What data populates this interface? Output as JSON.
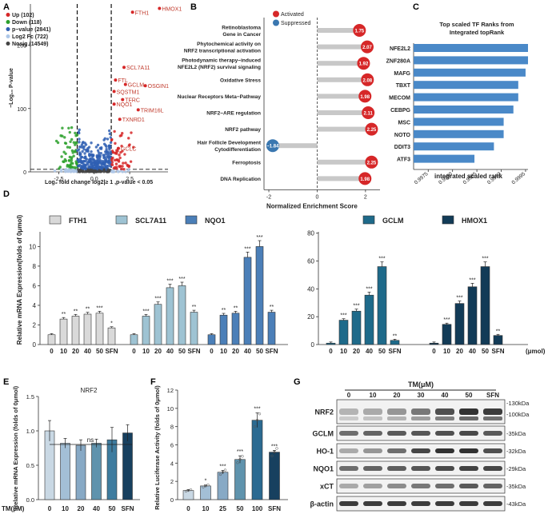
{
  "figure": {
    "panel_labels": [
      "A",
      "B",
      "C",
      "D",
      "E",
      "F",
      "G"
    ],
    "colors": {
      "up": "#d62728",
      "down": "#2ca02c",
      "pvalue": "#2f5fb3",
      "fc": "#aec7e8",
      "nosig": "#444444",
      "activated": "#d62728",
      "suppressed": "#3a77b0",
      "barfill": "#4a89c8",
      "d1": "#d9d9d9",
      "d2": "#9ec3d3",
      "d3": "#4b7fb8",
      "d4": "#1e6a8a",
      "d5": "#123b57",
      "e0": "#c9d8e4",
      "e1": "#a3bfd6",
      "e2": "#87a9c5",
      "e3": "#5f93ad",
      "e4": "#3e7c9f",
      "e5": "#2b6a91",
      "e6": "#17405f"
    }
  },
  "chart_data": [
    {
      "panel": "A",
      "type": "scatter",
      "xlabel": "Log₂ fold change  log2|≥ 1 ,p-value < 0.05",
      "ylabel": "−Log₁₀ P-value",
      "xlim": [
        -4.5,
        5.2
      ],
      "ylim": [
        0,
        265
      ],
      "xticks": [
        -2.5,
        0.0,
        2.5
      ],
      "xtick_labels": [
        "-2.5",
        "0.0",
        "2.5"
      ],
      "yticks": [
        0,
        100,
        200
      ],
      "ytick_labels": [
        "0",
        "100",
        "200"
      ],
      "vlines": [
        -1.2,
        1.2
      ],
      "legend": [
        {
          "label": "Up (102)",
          "color": "#d62728"
        },
        {
          "label": "Down (118)",
          "color": "#2ca02c"
        },
        {
          "label": "p−value (2841)",
          "color": "#2f5fb3"
        },
        {
          "label": "Log2 Fc (722)",
          "color": "#aec7e8"
        },
        {
          "label": "Nosig (14549)",
          "color": "#444444"
        }
      ],
      "genes": [
        {
          "name": "HMOX1",
          "x": 4.6,
          "y": 258
        },
        {
          "name": "FTH1",
          "x": 2.7,
          "y": 252
        },
        {
          "name": "SCL7A11",
          "x": 2.1,
          "y": 165
        },
        {
          "name": "FTL",
          "x": 1.5,
          "y": 145
        },
        {
          "name": "GCLM",
          "x": 2.2,
          "y": 138
        },
        {
          "name": "OSGIN1",
          "x": 3.6,
          "y": 136
        },
        {
          "name": "SQSTM1",
          "x": 1.4,
          "y": 127
        },
        {
          "name": "TFRC",
          "x": 2.0,
          "y": 114
        },
        {
          "name": "NQO1",
          "x": 1.4,
          "y": 107
        },
        {
          "name": "TRIM16L",
          "x": 3.1,
          "y": 98
        },
        {
          "name": "TXNRD1",
          "x": 1.8,
          "y": 83
        },
        {
          "name": "GCLC",
          "x": 1.7,
          "y": 37
        }
      ]
    },
    {
      "panel": "B",
      "type": "bar",
      "xlabel": "Normalized Enrichment Score",
      "xlim": [
        -2.2,
        2.6
      ],
      "xticks": [
        -2,
        0,
        2
      ],
      "xtick_labels": [
        "-2",
        "0",
        "2"
      ],
      "legend": [
        {
          "label": "Activated",
          "color": "#d62728"
        },
        {
          "label": "Suppressed",
          "color": "#3a77b0"
        }
      ],
      "categories": [
        "Retinoblastoma Gene in Cancer",
        "Phytochemical activity on NRF2 transcriptional activation",
        "Photodynamic therapy−induced NFE2L2 (NRF2) survival signaling",
        "Oxidative Stress",
        "Nuclear Receptors Meta−Pathway",
        "NRF2−ARE regulation",
        "NRF2 pathway",
        "Hair Follicle Development Cytodifferentiation",
        "Ferroptosis",
        "DNA Replication"
      ],
      "cat_lines": [
        [
          "Retinoblastoma",
          "Gene in Cancer"
        ],
        [
          "Phytochemical activity on",
          "NRF2 transcriptional activation"
        ],
        [
          "Photodynamic therapy−induced",
          "NFE2L2 (NRF2) survival signaling"
        ],
        [
          "Oxidative Stress"
        ],
        [
          "Nuclear Receptors Meta−Pathway"
        ],
        [
          "NRF2−ARE regulation"
        ],
        [
          "NRF2 pathway"
        ],
        [
          "Hair Follicle Development",
          "Cytodifferentiation"
        ],
        [
          "Ferroptosis"
        ],
        [
          "DNA Replication"
        ]
      ],
      "values": [
        1.75,
        2.07,
        1.92,
        2.08,
        1.98,
        2.11,
        2.25,
        -1.84,
        2.25,
        1.98
      ],
      "value_labels": [
        "1.75",
        "2.07",
        "1.92",
        "2.08",
        "1.98",
        "2.11",
        "2.25",
        "−1.84",
        "2.25",
        "1.98"
      ]
    },
    {
      "panel": "C",
      "type": "bar",
      "title": "Top scaled TF Ranks from Integrated topRank",
      "xlabel": "integrated scaled rank",
      "xlim": [
        0.9972,
        0.99955
      ],
      "xticks": [
        0.9975,
        0.998,
        0.9985,
        0.999,
        0.9995
      ],
      "xtick_labels": [
        "0.9975",
        "0.9980",
        "0.9985",
        "0.9990",
        "0.9995"
      ],
      "categories": [
        "NFE2L2",
        "ZNF280A",
        "MAFG",
        "TBXT",
        "MECOM",
        "CEBPG",
        "MSC",
        "NOTO",
        "DDIT3",
        "ATF3"
      ],
      "values": [
        0.99955,
        0.99955,
        0.9995,
        0.99935,
        0.99935,
        0.99925,
        0.99905,
        0.99905,
        0.99885,
        0.99845
      ]
    },
    {
      "panel": "D",
      "type": "bar",
      "ylabel": "Relative mRNA Expression(folds of 0μmol)",
      "ylim": [
        0,
        11.5
      ],
      "yticks": [
        0,
        2,
        4,
        6,
        8,
        10
      ],
      "ytick_labels": [
        "0",
        "2",
        "4",
        "6",
        "8",
        "10"
      ],
      "categories": [
        "0",
        "10",
        "20",
        "40",
        "50",
        "SFN"
      ],
      "series": [
        {
          "name": "FTH1",
          "values": [
            1.0,
            2.6,
            2.9,
            3.1,
            3.2,
            1.7
          ],
          "sig": [
            "",
            "**",
            "**",
            "**",
            "***",
            "*"
          ]
        },
        {
          "name": "SCL7A11",
          "values": [
            1.0,
            2.9,
            4.1,
            5.8,
            6.0,
            3.3
          ],
          "sig": [
            "",
            "***",
            "***",
            "***",
            "***",
            "**"
          ]
        },
        {
          "name": "NQO1",
          "values": [
            1.0,
            3.0,
            3.2,
            8.9,
            10.0,
            3.3
          ],
          "sig": [
            "",
            "**",
            "**",
            "***",
            "***",
            "**"
          ]
        }
      ]
    },
    {
      "panel": "D2",
      "type": "bar",
      "ylim": [
        0,
        81
      ],
      "yticks": [
        0,
        20,
        40,
        60,
        80
      ],
      "ytick_labels": [
        "0",
        "20",
        "40",
        "60",
        "80"
      ],
      "categories": [
        "0",
        "10",
        "20",
        "40",
        "50",
        "SFN"
      ],
      "unit_label": "(μmol)",
      "series": [
        {
          "name": "GCLM",
          "values": [
            1,
            17.5,
            24,
            35.5,
            56,
            3
          ],
          "sig": [
            "",
            "***",
            "***",
            "***",
            "***",
            "**"
          ]
        },
        {
          "name": "HMOX1",
          "values": [
            1,
            14.5,
            29.5,
            41.5,
            56,
            6.5
          ],
          "sig": [
            "",
            "***",
            "***",
            "***",
            "***",
            "**"
          ]
        }
      ]
    },
    {
      "panel": "E",
      "type": "bar",
      "title": "NRF2",
      "ylabel": "Relative mRNA Expression (folds of 0μmol)",
      "ylim": [
        0,
        1.5
      ],
      "yticks": [
        0.0,
        0.5,
        1.0,
        1.5
      ],
      "ytick_labels": [
        "0.0",
        "0.5",
        "1.0",
        "1.5"
      ],
      "row_label": "TM(μM)",
      "categories": [
        "0",
        "10",
        "20",
        "40",
        "50",
        "SFN"
      ],
      "values": [
        1.0,
        0.82,
        0.79,
        0.82,
        0.87,
        0.97
      ],
      "significance": "ns"
    },
    {
      "panel": "F",
      "type": "bar",
      "ylabel": "Relative Luciferase Activity (folds of 0μmol)",
      "ylim": [
        0,
        12
      ],
      "yticks": [
        0,
        2,
        4,
        6,
        8,
        10,
        12
      ],
      "ytick_labels": [
        "0",
        "2",
        "4",
        "6",
        "8",
        "10",
        "12"
      ],
      "categories": [
        "0",
        "10",
        "25",
        "50",
        "100",
        "SFN"
      ],
      "values": [
        1.0,
        1.5,
        3.0,
        4.4,
        8.7,
        5.2
      ],
      "sig": [
        "",
        "*",
        "***",
        "***",
        "***",
        "***"
      ]
    }
  ],
  "western_blot": {
    "title": "TM(μM)",
    "lanes": [
      "0",
      "10",
      "20",
      "30",
      "40",
      "50",
      "SFN"
    ],
    "proteins": [
      "NRF2",
      "GCLM",
      "HO-1",
      "NQO1",
      "xCT",
      "β-actin"
    ],
    "sizes": [
      [
        "130kDa",
        "100kDa"
      ],
      [
        "35kDa"
      ],
      [
        "32kDa"
      ],
      [
        "29kDa"
      ],
      [
        "35kDa"
      ],
      [
        "43kDa"
      ]
    ],
    "intensities": [
      [
        0.25,
        0.3,
        0.4,
        0.55,
        0.75,
        0.9,
        0.85
      ],
      [
        0.6,
        0.65,
        0.7,
        0.72,
        0.75,
        0.78,
        0.7
      ],
      [
        0.3,
        0.4,
        0.6,
        0.8,
        0.9,
        0.9,
        0.75
      ],
      [
        0.6,
        0.65,
        0.68,
        0.72,
        0.78,
        0.82,
        0.8
      ],
      [
        0.3,
        0.35,
        0.45,
        0.55,
        0.6,
        0.7,
        0.65
      ],
      [
        0.85,
        0.85,
        0.85,
        0.85,
        0.85,
        0.85,
        0.85
      ]
    ]
  }
}
